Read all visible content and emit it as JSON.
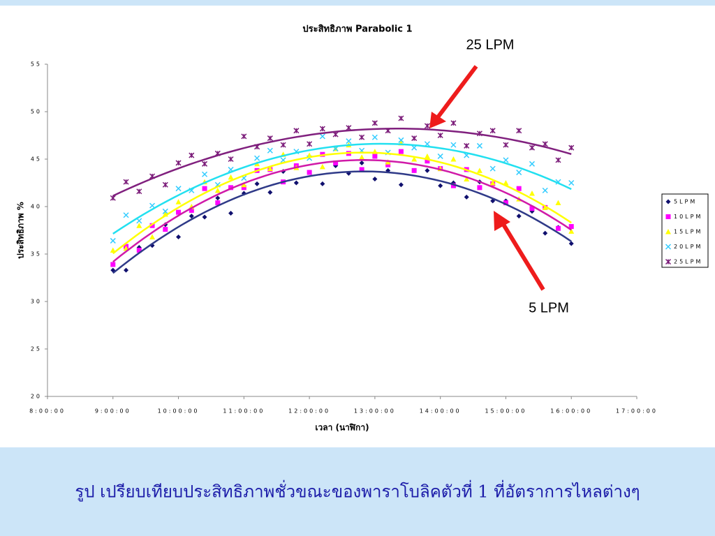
{
  "chart_data": {
    "type": "scatter",
    "title": "ประสิทธิภาพ Parabolic 1",
    "x_label": "เวลา (นาฬิกา)",
    "y_label": "ประสิทธิภาพ %",
    "xlim": [
      8,
      17
    ],
    "xticks": [
      {
        "value": 8,
        "label": "8:00:00"
      },
      {
        "value": 9,
        "label": "9:00:00"
      },
      {
        "value": 10,
        "label": "10:00:00"
      },
      {
        "value": 11,
        "label": "11:00:00"
      },
      {
        "value": 12,
        "label": "12:00:00"
      },
      {
        "value": 13,
        "label": "13:00:00"
      },
      {
        "value": 14,
        "label": "14:00:00"
      },
      {
        "value": 15,
        "label": "15:00:00"
      },
      {
        "value": 16,
        "label": "16:00:00"
      },
      {
        "value": 17,
        "label": "17:00:00"
      }
    ],
    "ylim": [
      20,
      55
    ],
    "yticks": [
      20,
      25,
      30,
      35,
      40,
      45,
      50,
      55
    ],
    "trendline": "poly2",
    "legend": "right",
    "x": [
      9.0,
      9.2,
      9.4,
      9.6,
      9.8,
      10.0,
      10.2,
      10.4,
      10.6,
      10.8,
      11.0,
      11.2,
      11.4,
      11.6,
      11.8,
      12.0,
      12.2,
      12.4,
      12.6,
      12.8,
      13.0,
      13.2,
      13.4,
      13.6,
      13.8,
      14.0,
      14.2,
      14.4,
      14.6,
      14.8,
      15.0,
      15.2,
      15.4,
      15.6,
      15.8,
      16.0
    ],
    "series": [
      {
        "name": "5LPM",
        "color": "#10106e",
        "line_color": "#2f3a88",
        "marker": "diamond",
        "values": [
          33.3,
          33.3,
          35.7,
          35.9,
          38.1,
          36.8,
          39.0,
          38.9,
          40.9,
          39.3,
          41.4,
          42.4,
          41.5,
          43.7,
          42.5,
          43.6,
          42.4,
          44.3,
          43.5,
          44.6,
          42.9,
          43.8,
          42.3,
          43.8,
          43.8,
          42.2,
          42.5,
          41.0,
          42.6,
          40.6,
          40.6,
          39.0,
          39.5,
          37.2,
          37.8,
          36.1
        ]
      },
      {
        "name": "10LPM",
        "color": "#ff00ff",
        "line_color": "#d01aa8",
        "marker": "square",
        "values": [
          33.9,
          35.8,
          35.4,
          38.0,
          37.6,
          39.4,
          39.6,
          41.9,
          40.4,
          42.0,
          42.0,
          43.8,
          43.9,
          42.6,
          44.3,
          43.6,
          45.5,
          44.6,
          45.6,
          43.9,
          45.3,
          44.4,
          45.8,
          43.8,
          44.8,
          44.0,
          42.2,
          43.9,
          42.0,
          42.4,
          40.4,
          41.9,
          39.8,
          39.9,
          37.7,
          37.9
        ]
      },
      {
        "name": "15LPM",
        "color": "#ffff00",
        "line_color": "#ffff00",
        "marker": "triangle",
        "values": [
          35.4,
          35.6,
          38.0,
          36.8,
          39.2,
          40.5,
          40.0,
          42.6,
          41.7,
          43.1,
          42.3,
          44.5,
          44.0,
          45.5,
          44.1,
          45.4,
          44.2,
          46.1,
          46.5,
          45.2,
          45.8,
          44.7,
          46.7,
          45.0,
          45.3,
          44.0,
          45.0,
          42.9,
          43.8,
          42.5,
          42.5,
          40.8,
          41.4,
          39.9,
          40.4,
          37.4
        ]
      },
      {
        "name": "20LPM",
        "color": "#33ccff",
        "line_color": "#22e0f0",
        "marker": "x",
        "values": [
          36.4,
          39.1,
          38.5,
          40.1,
          39.5,
          41.9,
          41.7,
          43.4,
          42.3,
          43.9,
          43.0,
          45.1,
          45.9,
          44.9,
          45.8,
          45.1,
          47.4,
          46.1,
          46.9,
          45.9,
          47.3,
          45.7,
          47.0,
          46.2,
          46.6,
          45.3,
          46.5,
          45.4,
          46.4,
          44.0,
          44.9,
          43.6,
          44.5,
          41.7,
          42.6,
          42.5
        ]
      },
      {
        "name": "25LPM",
        "color": "#7a1a78",
        "line_color": "#80207e",
        "marker": "star",
        "values": [
          40.9,
          42.6,
          41.6,
          43.2,
          42.3,
          44.6,
          45.4,
          44.5,
          45.6,
          45.0,
          47.4,
          46.3,
          47.2,
          46.5,
          48.0,
          46.6,
          48.2,
          47.6,
          48.3,
          47.3,
          48.8,
          48.0,
          49.3,
          47.2,
          48.5,
          47.5,
          48.8,
          46.4,
          47.7,
          48.0,
          46.5,
          48.0,
          46.2,
          46.6,
          44.9,
          46.2
        ]
      }
    ],
    "annotations": [
      "25 LPM",
      "5 LPM"
    ]
  },
  "caption": "รูป เปรียบเทียบประสิทธิภาพชั่วขณะของพาราโบลิคตัวที่ 1 ที่อัตราการไหลต่างๆ"
}
